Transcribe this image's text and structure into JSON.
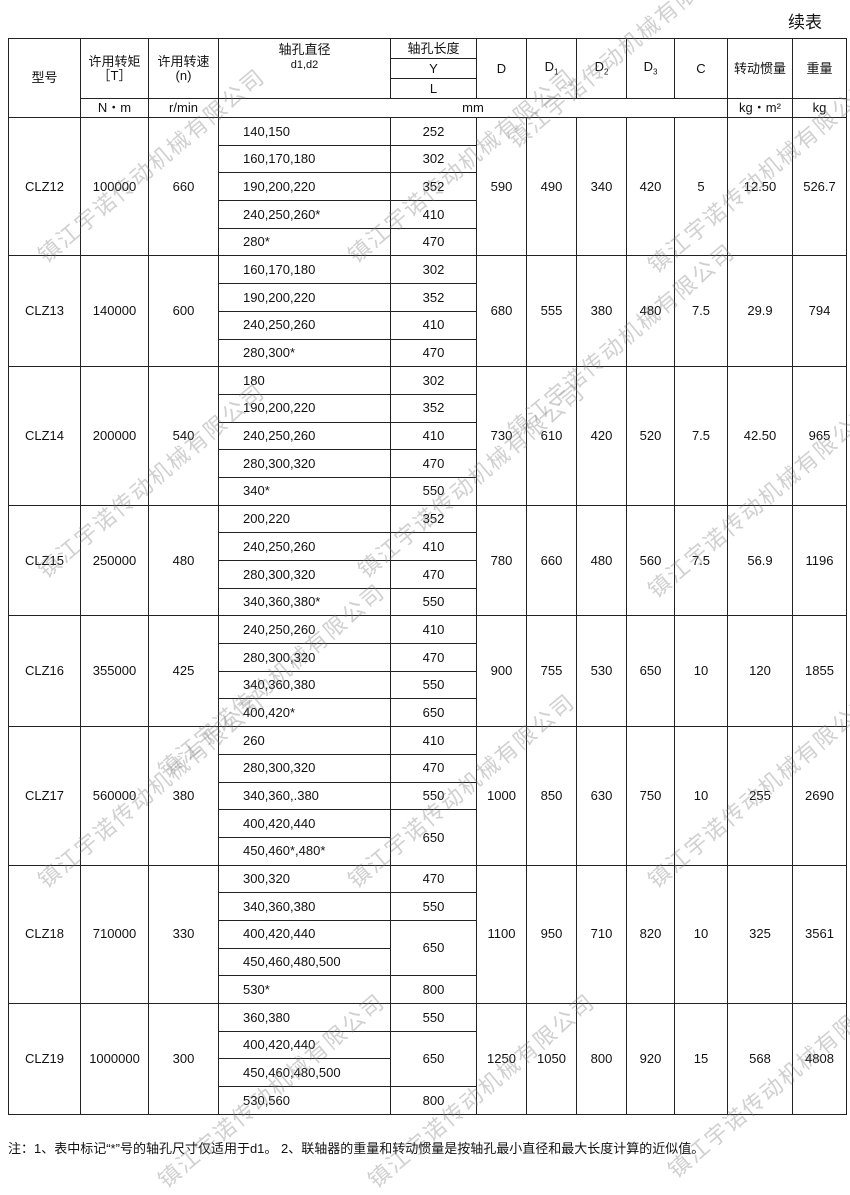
{
  "title_right": "续表",
  "headers": {
    "model": "型号",
    "torque": "许用转矩",
    "torque_sym": "［T］",
    "speed": "许用转速",
    "speed_sym": "(n)",
    "dia": "轴孔直径",
    "dia_sym": "d1,d2",
    "bore_len": "轴孔长度",
    "Y": "Y",
    "L": "L",
    "D": "D",
    "D1": "D1",
    "D2": "D2",
    "D3": "D3",
    "C": "C",
    "inertia": "转动惯量",
    "weight": "重量"
  },
  "units": {
    "torque": "N・m",
    "speed": "r/min",
    "mm": "mm",
    "inertia": "kg・m²",
    "weight": "kg"
  },
  "rows": [
    {
      "model": "CLZ12",
      "T": "100000",
      "n": "660",
      "D": "590",
      "D1": "490",
      "D2": "340",
      "D3": "420",
      "C": "5",
      "I": "12.50",
      "W": "526.7",
      "bores": [
        [
          "140,150",
          "252"
        ],
        [
          "160,170,180",
          "302"
        ],
        [
          "190,200,220",
          "352"
        ],
        [
          "240,250,260*",
          "410"
        ],
        [
          "280*",
          "470"
        ]
      ]
    },
    {
      "model": "CLZ13",
      "T": "140000",
      "n": "600",
      "D": "680",
      "D1": "555",
      "D2": "380",
      "D3": "480",
      "C": "7.5",
      "I": "29.9",
      "W": "794",
      "bores": [
        [
          "160,170,180",
          "302"
        ],
        [
          "190,200,220",
          "352"
        ],
        [
          "240,250,260",
          "410"
        ],
        [
          "280,300*",
          "470"
        ]
      ]
    },
    {
      "model": "CLZ14",
      "T": "200000",
      "n": "540",
      "D": "730",
      "D1": "610",
      "D2": "420",
      "D3": "520",
      "C": "7.5",
      "I": "42.50",
      "W": "965",
      "bores": [
        [
          "180",
          "302"
        ],
        [
          "190,200,220",
          "352"
        ],
        [
          "240,250,260",
          "410"
        ],
        [
          "280,300,320",
          "470"
        ],
        [
          "340*",
          "550"
        ]
      ]
    },
    {
      "model": "CLZ15",
      "T": "250000",
      "n": "480",
      "D": "780",
      "D1": "660",
      "D2": "480",
      "D3": "560",
      "C": "7.5",
      "I": "56.9",
      "W": "1196",
      "bores": [
        [
          "200,220",
          "352"
        ],
        [
          "240,250,260",
          "410"
        ],
        [
          "280,300,320",
          "470"
        ],
        [
          "340,360,380*",
          "550"
        ]
      ]
    },
    {
      "model": "CLZ16",
      "T": "355000",
      "n": "425",
      "D": "900",
      "D1": "755",
      "D2": "530",
      "D3": "650",
      "C": "10",
      "I": "120",
      "W": "1855",
      "bores": [
        [
          "240,250,260",
          "410"
        ],
        [
          "280,300,320",
          "470"
        ],
        [
          "340,360,380",
          "550"
        ],
        [
          "400,420*",
          "650"
        ]
      ]
    },
    {
      "model": "CLZ17",
      "T": "560000",
      "n": "380",
      "D": "1000",
      "D1": "850",
      "D2": "630",
      "D3": "750",
      "C": "10",
      "I": "255",
      "W": "2690",
      "bores": [
        [
          "260",
          "410"
        ],
        [
          "280,300,320",
          "470"
        ],
        [
          "340,360,.380",
          "550"
        ],
        [
          "400,420,440",
          "650"
        ],
        [
          "450,460*,480*",
          null
        ]
      ]
    },
    {
      "model": "CLZ18",
      "T": "710000",
      "n": "330",
      "D": "1100",
      "D1": "950",
      "D2": "710",
      "D3": "820",
      "C": "10",
      "I": "325",
      "W": "3561",
      "bores": [
        [
          "300,320",
          "470"
        ],
        [
          "340,360,380",
          "550"
        ],
        [
          "400,420,440",
          "650"
        ],
        [
          "450,460,480,500",
          null
        ],
        [
          "530*",
          "800"
        ]
      ]
    },
    {
      "model": "CLZ19",
      "T": "1000000",
      "n": "300",
      "D": "1250",
      "D1": "1050",
      "D2": "800",
      "D3": "920",
      "C": "15",
      "I": "568",
      "W": "4808",
      "bores": [
        [
          "360,380",
          "550"
        ],
        [
          "400,420,440",
          "650"
        ],
        [
          "450,460,480,500",
          null
        ],
        [
          "530,560",
          "800"
        ]
      ]
    }
  ],
  "note": "注：1、表中标记“*”号的轴孔尺寸仅适用于d1。  2、联轴器的重量和转动惯量是按轴孔最小直径和最大长度计算的近似值。",
  "watermark": "镇江宇诺传动机械有限公司"
}
